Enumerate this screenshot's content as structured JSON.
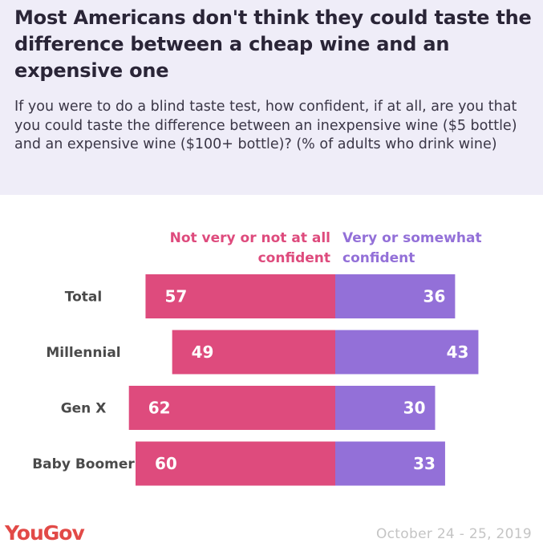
{
  "header": {
    "title": "Most Americans don't think they could taste the difference between a cheap wine and an expensive one",
    "subtitle": "If you were to do a blind taste test, how confident, if at all, are you that you could taste the difference between an inexpensive wine ($5 bottle) and an expensive wine ($100+ bottle)? (% of adults who drink wine)"
  },
  "legend": {
    "left": "Not very or not at all confident",
    "right": "Very or somewhat confident"
  },
  "colors": {
    "not_confident": "#de4b7d",
    "confident": "#9370d8",
    "header_bg": "#efedf8",
    "logo": "#e24a47",
    "date": "#c4c4c4"
  },
  "footer": {
    "logo": "YouGov",
    "date": "October 24 - 25, 2019"
  },
  "chart_data": {
    "type": "bar",
    "orientation": "horizontal-diverging",
    "categories": [
      "Total",
      "Millennial",
      "Gen X",
      "Baby Boomer"
    ],
    "series": [
      {
        "name": "Not very or not at all confident",
        "values": [
          57,
          49,
          62,
          60
        ]
      },
      {
        "name": "Very or somewhat confident",
        "values": [
          36,
          43,
          30,
          33
        ]
      }
    ],
    "grid": false
  }
}
